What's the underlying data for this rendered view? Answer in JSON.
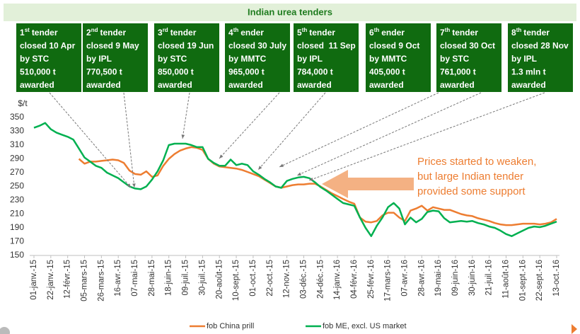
{
  "chart_data": {
    "type": "line",
    "title": "Indian urea tenders",
    "y_label": "$/t",
    "ylim": [
      150,
      350
    ],
    "yticks": [
      150,
      170,
      190,
      210,
      230,
      250,
      270,
      290,
      310,
      330,
      350
    ],
    "grid": false,
    "legend": "bottom",
    "categories": [
      "01-janv.-15",
      null,
      null,
      "22-janv.-15",
      null,
      null,
      "12-févr.-15",
      null,
      null,
      "05-mars-15",
      null,
      null,
      "26-mars-15",
      null,
      null,
      "16-avr.-15",
      null,
      null,
      "07-mai-15",
      null,
      null,
      "28-mai-15",
      null,
      null,
      "18-juin-15",
      null,
      null,
      "09-juil.-15",
      null,
      null,
      "30-juil.-15",
      null,
      null,
      "20-août-15",
      null,
      null,
      "10-sept.-15",
      null,
      null,
      "01-oct.-15",
      null,
      null,
      "22-oct.-15",
      null,
      null,
      "12-nov.-15",
      null,
      null,
      "03-déc.-15",
      null,
      null,
      "24-déc.-15",
      null,
      null,
      "14-janv.-16",
      null,
      null,
      "04-févr.-16",
      null,
      null,
      "25-févr.-16",
      null,
      null,
      "17-mars-16",
      null,
      null,
      "07-avr.-16",
      null,
      null,
      "28-avr.-16",
      null,
      null,
      "19-mai-16",
      null,
      null,
      "09-juin-16",
      null,
      null,
      "30-juin-16",
      null,
      null,
      "21-juil.-16",
      null,
      null,
      "11-août-16",
      null,
      null,
      "01-sept.-16",
      null,
      null,
      "22-sept.-16",
      null,
      null,
      "13-oct.-16"
    ],
    "series": [
      {
        "name": "fob China prill",
        "color": "#ed7d31",
        "values": [
          null,
          null,
          null,
          null,
          null,
          null,
          null,
          null,
          290,
          283,
          286,
          286,
          287,
          288,
          289,
          288,
          284,
          273,
          268,
          267,
          272,
          264,
          266,
          280,
          290,
          297,
          302,
          305,
          307,
          306,
          303,
          290,
          283,
          279,
          278,
          277,
          276,
          274,
          271,
          268,
          265,
          260,
          255,
          250,
          248,
          250,
          252,
          253,
          253,
          254,
          254,
          250,
          245,
          240,
          236,
          232,
          228,
          225,
          205,
          199,
          198,
          200,
          208,
          212,
          212,
          205,
          200,
          215,
          218,
          222,
          215,
          220,
          218,
          216,
          216,
          213,
          210,
          208,
          207,
          204,
          202,
          200,
          197,
          195,
          194,
          194,
          195,
          196,
          196,
          196,
          195,
          196,
          198,
          203
        ]
      },
      {
        "name": "fob ME, excl. US market",
        "color": "#00b050",
        "values": [
          335,
          338,
          342,
          333,
          328,
          325,
          322,
          318,
          305,
          292,
          286,
          280,
          277,
          270,
          266,
          262,
          256,
          250,
          247,
          246,
          250,
          260,
          272,
          288,
          310,
          312,
          312,
          312,
          310,
          307,
          307,
          290,
          284,
          280,
          280,
          289,
          281,
          283,
          281,
          272,
          267,
          261,
          256,
          250,
          248,
          258,
          261,
          263,
          264,
          262,
          256,
          249,
          244,
          238,
          232,
          226,
          224,
          222,
          205,
          190,
          178,
          193,
          205,
          220,
          226,
          218,
          195,
          205,
          198,
          203,
          213,
          215,
          214,
          204,
          198,
          199,
          200,
          199,
          200,
          197,
          195,
          192,
          190,
          186,
          181,
          178,
          182,
          186,
          190,
          192,
          191,
          193,
          196,
          199
        ]
      }
    ],
    "tenders": [
      {
        "number": "1",
        "suffix": "st",
        "heading": "tender",
        "lines": [
          "closed 10 Apr",
          "by STC",
          "510,000 t",
          "awarded"
        ]
      },
      {
        "number": "2",
        "suffix": "nd",
        "heading": "tender",
        "lines": [
          "closed 9 May",
          "by IPL",
          "770,500 t",
          "awarded"
        ]
      },
      {
        "number": "3",
        "suffix": "rd",
        "heading": "tender",
        "lines": [
          "closed 19 Jun",
          "by STC",
          "850,000 t",
          "awarded"
        ]
      },
      {
        "number": "4",
        "suffix": "th",
        "heading": "ender",
        "lines": [
          "closed 30 July",
          "by MMTC",
          "965,000 t",
          "awarded"
        ]
      },
      {
        "number": "5",
        "suffix": "th",
        "heading": "tender",
        "lines": [
          "closed  11 Sep",
          "by IPL",
          "784,000 t",
          "awarded"
        ]
      },
      {
        "number": "6",
        "suffix": "th",
        "heading": "ender",
        "lines": [
          "closed 9 Oct",
          "by MMTC",
          "405,000 t",
          "awarded"
        ]
      },
      {
        "number": "7",
        "suffix": "th",
        "heading": "tender",
        "lines": [
          "closed 30 Oct",
          "by STC",
          "761,000 t",
          "awarded"
        ]
      },
      {
        "number": "8",
        "suffix": "th",
        "heading": "tender",
        "lines": [
          "closed 28 Nov",
          "by IPL",
          "1.3 mln t",
          "awarded"
        ]
      }
    ],
    "annotation": [
      "Prices started to weaken,",
      "but large Indian tender",
      "provided some support"
    ]
  }
}
